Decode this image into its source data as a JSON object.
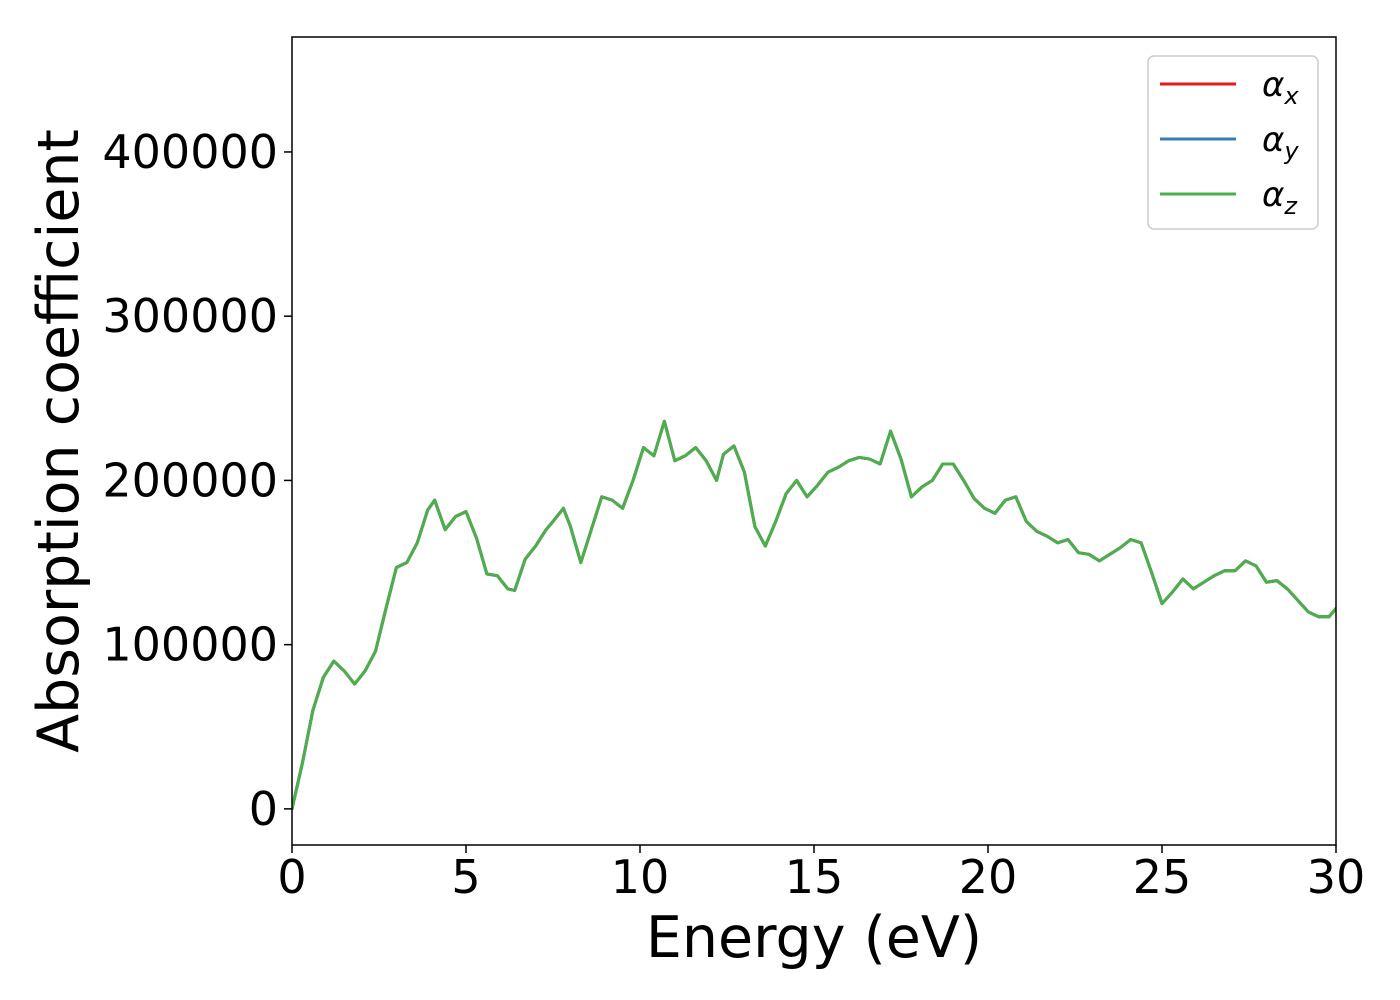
{
  "chart_data": {
    "type": "line",
    "title": "",
    "xlabel": "Energy (eV)",
    "ylabel": "Absorption coefficient",
    "xlim": [
      0,
      30
    ],
    "ylim": [
      -22000,
      470000
    ],
    "xticks": [
      0,
      5,
      10,
      15,
      20,
      25,
      30
    ],
    "yticks": [
      0,
      100000,
      200000,
      300000,
      400000
    ],
    "xtick_labels": [
      "0",
      "5",
      "10",
      "15",
      "20",
      "25",
      "30"
    ],
    "ytick_labels": [
      "0",
      "100000",
      "200000",
      "300000",
      "400000"
    ],
    "grid": false,
    "legend_position": "top-right",
    "x": [
      0,
      0.3,
      0.6,
      0.9,
      1.2,
      1.5,
      1.8,
      2.1,
      2.4,
      2.7,
      3.0,
      3.3,
      3.6,
      3.9,
      4.1,
      4.4,
      4.7,
      5.0,
      5.3,
      5.6,
      5.9,
      6.2,
      6.4,
      6.7,
      7.0,
      7.3,
      7.5,
      7.8,
      8.0,
      8.3,
      8.6,
      8.9,
      9.2,
      9.5,
      9.8,
      10.1,
      10.4,
      10.7,
      11.0,
      11.3,
      11.6,
      11.9,
      12.2,
      12.4,
      12.7,
      13.0,
      13.3,
      13.6,
      13.9,
      14.2,
      14.5,
      14.8,
      15.1,
      15.4,
      15.7,
      16.0,
      16.3,
      16.6,
      16.9,
      17.2,
      17.5,
      17.8,
      18.1,
      18.4,
      18.7,
      19.0,
      19.3,
      19.6,
      19.9,
      20.2,
      20.5,
      20.8,
      21.1,
      21.4,
      21.7,
      22.0,
      22.3,
      22.6,
      22.9,
      23.2,
      23.5,
      23.8,
      24.1,
      24.4,
      24.7,
      25.0,
      25.3,
      25.6,
      25.9,
      26.2,
      26.5,
      26.8,
      27.1,
      27.4,
      27.7,
      28.0,
      28.3,
      28.6,
      28.9,
      29.2,
      29.5,
      29.8,
      30.0
    ],
    "series": [
      {
        "name": "αx",
        "label_base": "α",
        "label_sub": "x",
        "color": "#e41a1c",
        "values": [
          0,
          28000,
          60000,
          80000,
          90000,
          84000,
          76000,
          84000,
          96000,
          122000,
          147000,
          150000,
          162000,
          182000,
          188000,
          170000,
          178000,
          181000,
          165000,
          143000,
          142000,
          134000,
          133000,
          152000,
          160000,
          170000,
          175000,
          183000,
          172000,
          150000,
          170000,
          190000,
          188000,
          183000,
          200000,
          220000,
          215000,
          236000,
          212000,
          215000,
          220000,
          212000,
          200000,
          216000,
          221000,
          205000,
          172000,
          160000,
          175000,
          192000,
          200000,
          190000,
          197000,
          205000,
          208000,
          212000,
          214000,
          213000,
          210000,
          230000,
          213000,
          190000,
          196000,
          200000,
          210000,
          210000,
          200000,
          189000,
          183000,
          180000,
          188000,
          190000,
          175000,
          169000,
          166000,
          162000,
          164000,
          156000,
          155000,
          151000,
          155000,
          159000,
          164000,
          162000,
          144000,
          125000,
          132000,
          140000,
          134000,
          138000,
          142000,
          145000,
          145000,
          151000,
          148000,
          138000,
          139000,
          134000,
          127000,
          120000,
          117000,
          117000,
          122000
        ]
      },
      {
        "name": "αy",
        "label_base": "α",
        "label_sub": "y",
        "color": "#377eb8",
        "values": [
          0,
          28000,
          60000,
          80000,
          90000,
          84000,
          76000,
          84000,
          96000,
          122000,
          147000,
          150000,
          162000,
          182000,
          188000,
          170000,
          178000,
          181000,
          165000,
          143000,
          142000,
          134000,
          133000,
          152000,
          160000,
          170000,
          175000,
          183000,
          172000,
          150000,
          170000,
          190000,
          188000,
          183000,
          200000,
          220000,
          215000,
          236000,
          212000,
          215000,
          220000,
          212000,
          200000,
          216000,
          221000,
          205000,
          172000,
          160000,
          175000,
          192000,
          200000,
          190000,
          197000,
          205000,
          208000,
          212000,
          214000,
          213000,
          210000,
          230000,
          213000,
          190000,
          196000,
          200000,
          210000,
          210000,
          200000,
          189000,
          183000,
          180000,
          188000,
          190000,
          175000,
          169000,
          166000,
          162000,
          164000,
          156000,
          155000,
          151000,
          155000,
          159000,
          164000,
          162000,
          144000,
          125000,
          132000,
          140000,
          134000,
          138000,
          142000,
          145000,
          145000,
          151000,
          148000,
          138000,
          139000,
          134000,
          127000,
          120000,
          117000,
          117000,
          122000
        ]
      },
      {
        "name": "αz",
        "label_base": "α",
        "label_sub": "z",
        "color": "#4daf4a",
        "values": [
          0,
          28000,
          60000,
          80000,
          90000,
          84000,
          76000,
          84000,
          96000,
          122000,
          147000,
          150000,
          162000,
          182000,
          188000,
          170000,
          178000,
          181000,
          165000,
          143000,
          142000,
          134000,
          133000,
          152000,
          160000,
          170000,
          175000,
          183000,
          172000,
          150000,
          170000,
          190000,
          188000,
          183000,
          200000,
          220000,
          215000,
          236000,
          212000,
          215000,
          220000,
          212000,
          200000,
          216000,
          221000,
          205000,
          172000,
          160000,
          175000,
          192000,
          200000,
          190000,
          197000,
          205000,
          208000,
          212000,
          214000,
          213000,
          210000,
          230000,
          213000,
          190000,
          196000,
          200000,
          210000,
          210000,
          200000,
          189000,
          183000,
          180000,
          188000,
          190000,
          175000,
          169000,
          166000,
          162000,
          164000,
          156000,
          155000,
          151000,
          155000,
          159000,
          164000,
          162000,
          144000,
          125000,
          132000,
          140000,
          134000,
          138000,
          142000,
          145000,
          145000,
          151000,
          148000,
          138000,
          139000,
          134000,
          127000,
          120000,
          117000,
          117000,
          122000
        ]
      }
    ]
  }
}
